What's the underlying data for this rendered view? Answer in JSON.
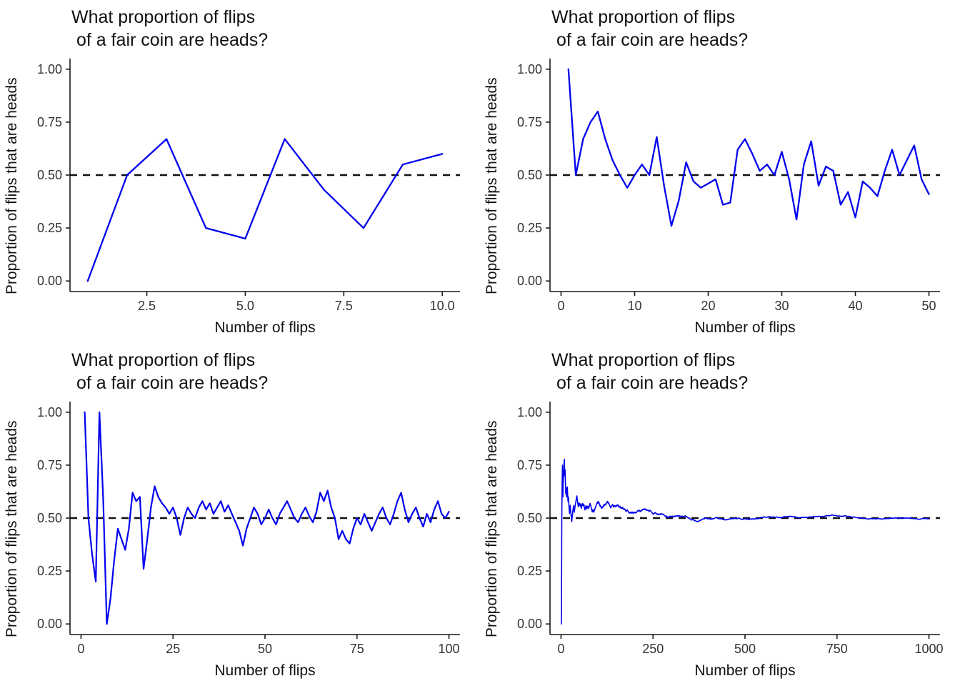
{
  "page": {
    "background": "#ffffff"
  },
  "chart_data": [
    {
      "type": "line",
      "title": "What proportion of flips\n of a fair coin are heads?",
      "xlabel": "Number of flips",
      "ylabel": "Proportion of flips that are heads",
      "n_flips": 10,
      "ylim": [
        0,
        1
      ],
      "xlim_display": [
        0.55,
        10.45
      ],
      "xticks": [
        2.5,
        5,
        7.5,
        10
      ],
      "xtick_labels": [
        "2.5",
        "5.0",
        "7.5",
        "10.0"
      ],
      "yticks": [
        0,
        0.25,
        0.5,
        0.75,
        1
      ],
      "ytick_labels": [
        "0.00",
        "0.25",
        "0.50",
        "0.75",
        "1.00"
      ],
      "grid": "off",
      "legend": "none",
      "reference_line": {
        "y": 0.5,
        "style": "dashed",
        "color": "#111111"
      },
      "line_color": "#0000EE",
      "line_width": 2.3,
      "x": [
        1,
        2,
        3,
        4,
        5,
        6,
        7,
        8,
        9,
        10
      ],
      "y": [
        0.0,
        0.5,
        0.67,
        0.25,
        0.2,
        0.67,
        0.43,
        0.25,
        0.55,
        0.6
      ]
    },
    {
      "type": "line",
      "title": "What proportion of flips\n of a fair coin are heads?",
      "xlabel": "Number of flips",
      "ylabel": "Proportion of flips that are heads",
      "n_flips": 50,
      "ylim": [
        0,
        1
      ],
      "xlim_display": [
        -1.5,
        51.5
      ],
      "xticks": [
        0,
        10,
        20,
        30,
        40,
        50
      ],
      "xtick_labels": [
        "0",
        "10",
        "20",
        "30",
        "40",
        "50"
      ],
      "yticks": [
        0,
        0.25,
        0.5,
        0.75,
        1
      ],
      "ytick_labels": [
        "0.00",
        "0.25",
        "0.50",
        "0.75",
        "1.00"
      ],
      "grid": "off",
      "legend": "none",
      "reference_line": {
        "y": 0.5,
        "style": "dashed",
        "color": "#111111"
      },
      "line_color": "#0000EE",
      "line_width": 2.3,
      "y": [
        1.0,
        0.5,
        0.67,
        0.75,
        0.8,
        0.67,
        0.57,
        0.5,
        0.44,
        0.5,
        0.55,
        0.5,
        0.68,
        0.45,
        0.26,
        0.38,
        0.56,
        0.47,
        0.44,
        0.46,
        0.48,
        0.36,
        0.37,
        0.62,
        0.67,
        0.6,
        0.52,
        0.55,
        0.5,
        0.61,
        0.48,
        0.29,
        0.55,
        0.66,
        0.45,
        0.54,
        0.52,
        0.36,
        0.42,
        0.3,
        0.47,
        0.44,
        0.4,
        0.52,
        0.62,
        0.5,
        0.57,
        0.64,
        0.48,
        0.41
      ]
    },
    {
      "type": "line",
      "title": "What proportion of flips\n of a fair coin are heads?",
      "xlabel": "Number of flips",
      "ylabel": "Proportion of flips that are heads",
      "n_flips": 100,
      "ylim": [
        0,
        1
      ],
      "xlim_display": [
        -3,
        103
      ],
      "xticks": [
        0,
        25,
        50,
        75,
        100
      ],
      "xtick_labels": [
        "0",
        "25",
        "50",
        "75",
        "100"
      ],
      "yticks": [
        0,
        0.25,
        0.5,
        0.75,
        1
      ],
      "ytick_labels": [
        "0.00",
        "0.25",
        "0.50",
        "0.75",
        "1.00"
      ],
      "grid": "off",
      "legend": "none",
      "reference_line": {
        "y": 0.5,
        "style": "dashed",
        "color": "#111111"
      },
      "line_color": "#0000EE",
      "line_width": 2.2,
      "y": [
        1.0,
        0.5,
        0.33,
        0.2,
        1.0,
        0.6,
        0.0,
        0.12,
        0.3,
        0.45,
        0.4,
        0.35,
        0.45,
        0.62,
        0.58,
        0.6,
        0.26,
        0.4,
        0.55,
        0.65,
        0.6,
        0.57,
        0.55,
        0.52,
        0.55,
        0.5,
        0.42,
        0.5,
        0.55,
        0.52,
        0.5,
        0.55,
        0.58,
        0.54,
        0.57,
        0.52,
        0.55,
        0.58,
        0.53,
        0.56,
        0.52,
        0.48,
        0.44,
        0.37,
        0.45,
        0.5,
        0.55,
        0.52,
        0.47,
        0.5,
        0.54,
        0.5,
        0.47,
        0.52,
        0.55,
        0.58,
        0.54,
        0.5,
        0.48,
        0.52,
        0.55,
        0.51,
        0.48,
        0.53,
        0.62,
        0.58,
        0.63,
        0.55,
        0.5,
        0.4,
        0.44,
        0.4,
        0.38,
        0.45,
        0.5,
        0.47,
        0.52,
        0.48,
        0.44,
        0.48,
        0.52,
        0.55,
        0.5,
        0.47,
        0.52,
        0.58,
        0.62,
        0.54,
        0.48,
        0.52,
        0.55,
        0.5,
        0.46,
        0.52,
        0.48,
        0.54,
        0.58,
        0.52,
        0.5,
        0.53
      ]
    },
    {
      "type": "line",
      "title": "What proportion of flips\n of a fair coin are heads?",
      "xlabel": "Number of flips",
      "ylabel": "Proportion of flips that are heads",
      "n_flips": 1000,
      "ylim": [
        0,
        1
      ],
      "xlim_display": [
        -30,
        1030
      ],
      "xticks": [
        0,
        250,
        500,
        750,
        1000
      ],
      "xtick_labels": [
        "0",
        "250",
        "500",
        "750",
        "1000"
      ],
      "yticks": [
        0,
        0.25,
        0.5,
        0.75,
        1
      ],
      "ytick_labels": [
        "0.00",
        "0.25",
        "0.50",
        "0.75",
        "1.00"
      ],
      "grid": "off",
      "legend": "none",
      "reference_line": {
        "y": 0.5,
        "style": "dashed",
        "color": "#111111"
      },
      "line_color": "#0000EE",
      "line_width": 1.6,
      "series": {
        "mode": "simulated_cumulative_proportion",
        "n": 1000,
        "seed": 77,
        "p_heads": 0.5,
        "mean_reversion": 0.35,
        "initial_flips": [
          0,
          1,
          1,
          1,
          0,
          1,
          1,
          1,
          1,
          0,
          1,
          0,
          0,
          1,
          0
        ],
        "observed_start": 0.0,
        "observed_early_peak": 0.78,
        "observed_convergence": 0.5
      }
    }
  ]
}
